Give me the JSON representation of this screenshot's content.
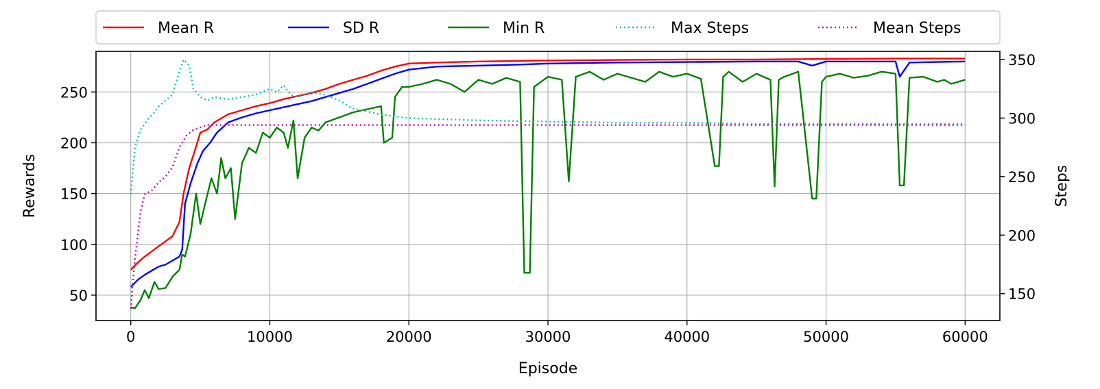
{
  "chart_data": {
    "type": "line",
    "xlabel": "Episode",
    "ylabel": "Rewards",
    "y2label": "Steps",
    "xlim": [
      -2500,
      62500
    ],
    "ylim": [
      25,
      290
    ],
    "y2lim": [
      127,
      357
    ],
    "xticks": [
      0,
      10000,
      20000,
      30000,
      40000,
      50000,
      60000
    ],
    "yticks": [
      50,
      100,
      150,
      200,
      250
    ],
    "y2ticks": [
      150,
      200,
      250,
      300,
      350
    ],
    "grid": true,
    "legend": "top",
    "legend_entries": [
      "Mean R",
      "SD R",
      "Min R",
      "Max Steps",
      "Mean Steps"
    ],
    "series": [
      {
        "name": "Mean R",
        "axis": "left",
        "color": "#ff0000",
        "style": "solid",
        "x": [
          0,
          500,
          1000,
          1500,
          2000,
          2500,
          3000,
          3500,
          3800,
          4200,
          4600,
          5000,
          5500,
          6000,
          7000,
          8000,
          9000,
          10000,
          11000,
          12000,
          13000,
          14000,
          15000,
          16000,
          17000,
          18000,
          19000,
          20000,
          22000,
          25000,
          30000,
          35000,
          40000,
          45000,
          50000,
          55000,
          60000
        ],
        "y": [
          75,
          82,
          88,
          93,
          98,
          103,
          108,
          122,
          150,
          175,
          192,
          210,
          213,
          220,
          228,
          232,
          236,
          239,
          243,
          246,
          249,
          253,
          258,
          262,
          266,
          271,
          275,
          278,
          279,
          280,
          281,
          281.5,
          282,
          282,
          282.5,
          283,
          283
        ]
      },
      {
        "name": "SD R",
        "axis": "left",
        "color": "#0000ff",
        "style": "solid",
        "x": [
          0,
          500,
          1000,
          1500,
          2000,
          2500,
          3000,
          3500,
          3700,
          3900,
          4300,
          4800,
          5200,
          5700,
          6200,
          7000,
          8000,
          9000,
          10000,
          11000,
          12000,
          13000,
          14000,
          15000,
          16000,
          17000,
          18000,
          19000,
          20000,
          22000,
          25000,
          28000,
          30000,
          35000,
          40000,
          45000,
          48000,
          49000,
          50000,
          55000,
          55300,
          56000,
          60000
        ],
        "y": [
          58,
          65,
          70,
          74,
          78,
          80,
          84,
          88,
          95,
          140,
          160,
          180,
          192,
          200,
          210,
          220,
          225,
          229,
          232,
          235,
          238,
          241,
          245,
          249,
          253,
          258,
          263,
          268,
          272,
          275,
          276,
          277,
          278,
          279,
          279.5,
          280,
          280,
          276,
          280,
          280,
          265,
          279,
          280
        ]
      },
      {
        "name": "Min R",
        "axis": "left",
        "color": "#008000",
        "style": "solid",
        "x": [
          0,
          300,
          700,
          1000,
          1300,
          1700,
          2000,
          2500,
          3000,
          3500,
          3700,
          3900,
          4300,
          4700,
          5000,
          5400,
          5800,
          6200,
          6500,
          6800,
          7200,
          7500,
          8000,
          8500,
          9000,
          9500,
          10000,
          10500,
          11000,
          11300,
          11700,
          12000,
          12500,
          13000,
          13500,
          14000,
          15000,
          16000,
          17000,
          18000,
          18200,
          18800,
          19000,
          19500,
          20000,
          21000,
          22000,
          23000,
          24000,
          25000,
          26000,
          27000,
          28000,
          28300,
          28700,
          29000,
          30000,
          31000,
          31500,
          32000,
          33000,
          34000,
          35000,
          36000,
          37000,
          38000,
          39000,
          40000,
          41000,
          42000,
          42300,
          42600,
          43000,
          44000,
          45000,
          46000,
          46300,
          46600,
          47000,
          48000,
          49000,
          49300,
          49700,
          50000,
          51000,
          52000,
          53000,
          54000,
          55000,
          55300,
          55600,
          56000,
          57000,
          58000,
          58500,
          59000,
          60000
        ],
        "y": [
          38,
          37,
          45,
          55,
          47,
          63,
          56,
          57,
          68,
          75,
          90,
          88,
          110,
          150,
          120,
          143,
          165,
          150,
          185,
          165,
          175,
          125,
          180,
          195,
          190,
          210,
          205,
          215,
          210,
          195,
          222,
          165,
          205,
          215,
          212,
          220,
          225,
          230,
          233,
          236,
          200,
          205,
          245,
          255,
          255,
          258,
          262,
          258,
          250,
          262,
          258,
          264,
          260,
          72,
          72,
          255,
          265,
          262,
          162,
          265,
          270,
          262,
          268,
          264,
          260,
          270,
          265,
          268,
          263,
          177,
          177,
          265,
          270,
          260,
          268,
          262,
          157,
          262,
          265,
          270,
          145,
          145,
          260,
          265,
          268,
          264,
          266,
          270,
          268,
          158,
          158,
          264,
          265,
          260,
          262,
          258,
          262
        ]
      },
      {
        "name": "Max Steps",
        "axis": "right",
        "color": "#00c0b0",
        "style": "dotted",
        "x": [
          0,
          300,
          700,
          1000,
          1300,
          1700,
          2000,
          2500,
          3000,
          3500,
          3800,
          4200,
          4500,
          5000,
          5500,
          6000,
          7000,
          8000,
          9000,
          10000,
          10500,
          11000,
          11500,
          12000,
          13000,
          14000,
          15000,
          16000,
          18000,
          20000,
          25000,
          30000,
          35000,
          40000,
          45000,
          50000,
          55000,
          60000
        ],
        "y": [
          235,
          275,
          290,
          295,
          300,
          305,
          310,
          315,
          320,
          340,
          350,
          345,
          325,
          318,
          315,
          318,
          316,
          318,
          320,
          325,
          322,
          328,
          320,
          318,
          322,
          320,
          315,
          308,
          303,
          300,
          298,
          297,
          296,
          296,
          295,
          295,
          295,
          295
        ]
      },
      {
        "name": "Mean Steps",
        "axis": "right",
        "color": "#c000c0",
        "style": "dotted",
        "x": [
          0,
          300,
          700,
          1000,
          1500,
          2000,
          2500,
          3000,
          3500,
          4000,
          4500,
          5000,
          5500,
          6000,
          7000,
          8000,
          10000,
          15000,
          20000,
          30000,
          40000,
          50000,
          60000
        ],
        "y": [
          137,
          180,
          220,
          235,
          238,
          245,
          250,
          258,
          275,
          285,
          290,
          292,
          294,
          294,
          294,
          294,
          294,
          294,
          294,
          294,
          294,
          294,
          294
        ]
      }
    ]
  }
}
